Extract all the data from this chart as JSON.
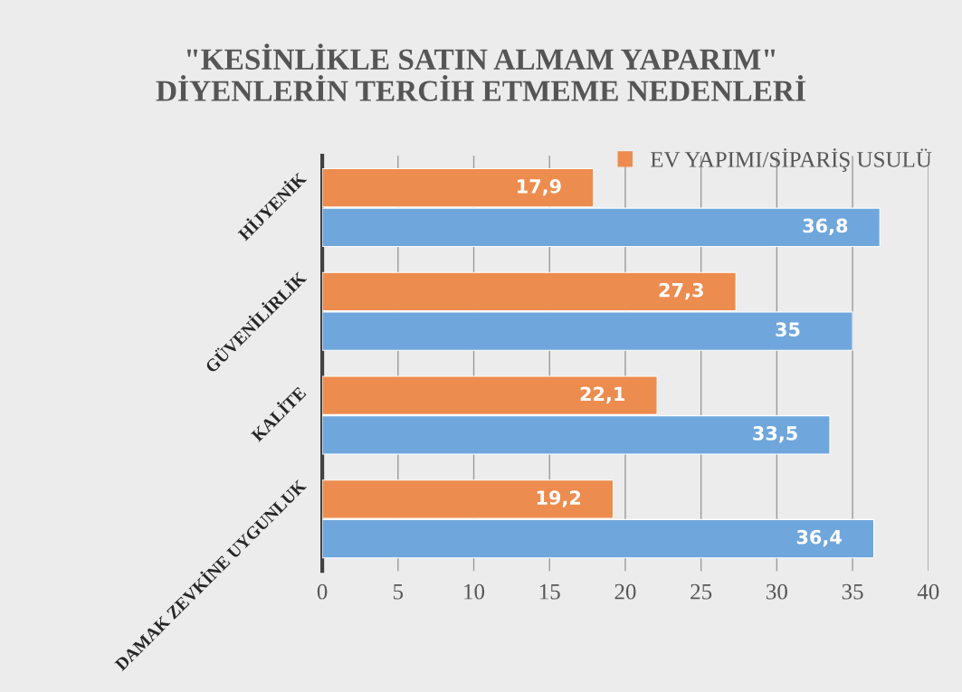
{
  "chart_data": {
    "type": "bar",
    "orientation": "horizontal",
    "title": "\"KESİNLİKLE SATIN ALMAM YAPARIM\"\nDİYENLERİN TERCİH ETMEME NEDENLERİ",
    "categories": [
      "HİJYENİK",
      "GÜVENİLİRLİK",
      "KALİTE",
      "DAMAK ZEVKİNE UYGUNLUK"
    ],
    "series": [
      {
        "name": "EV YAPIMI/SİPARİŞ USULÜ",
        "color": "#ed8c4f",
        "values": [
          17.9,
          27.3,
          22.1,
          19.2
        ],
        "value_labels": [
          "17,9",
          "27,3",
          "22,1",
          "19,2"
        ]
      },
      {
        "color": "#6fa6dc",
        "values": [
          36.8,
          35,
          33.5,
          36.4
        ],
        "value_labels": [
          "36,8",
          "35",
          "33,5",
          "36,4"
        ]
      }
    ],
    "xlim": [
      0,
      40
    ],
    "xticks": [
      0,
      5,
      10,
      15,
      20,
      25,
      30,
      35,
      40
    ],
    "grid": "x",
    "legend": "top right"
  }
}
